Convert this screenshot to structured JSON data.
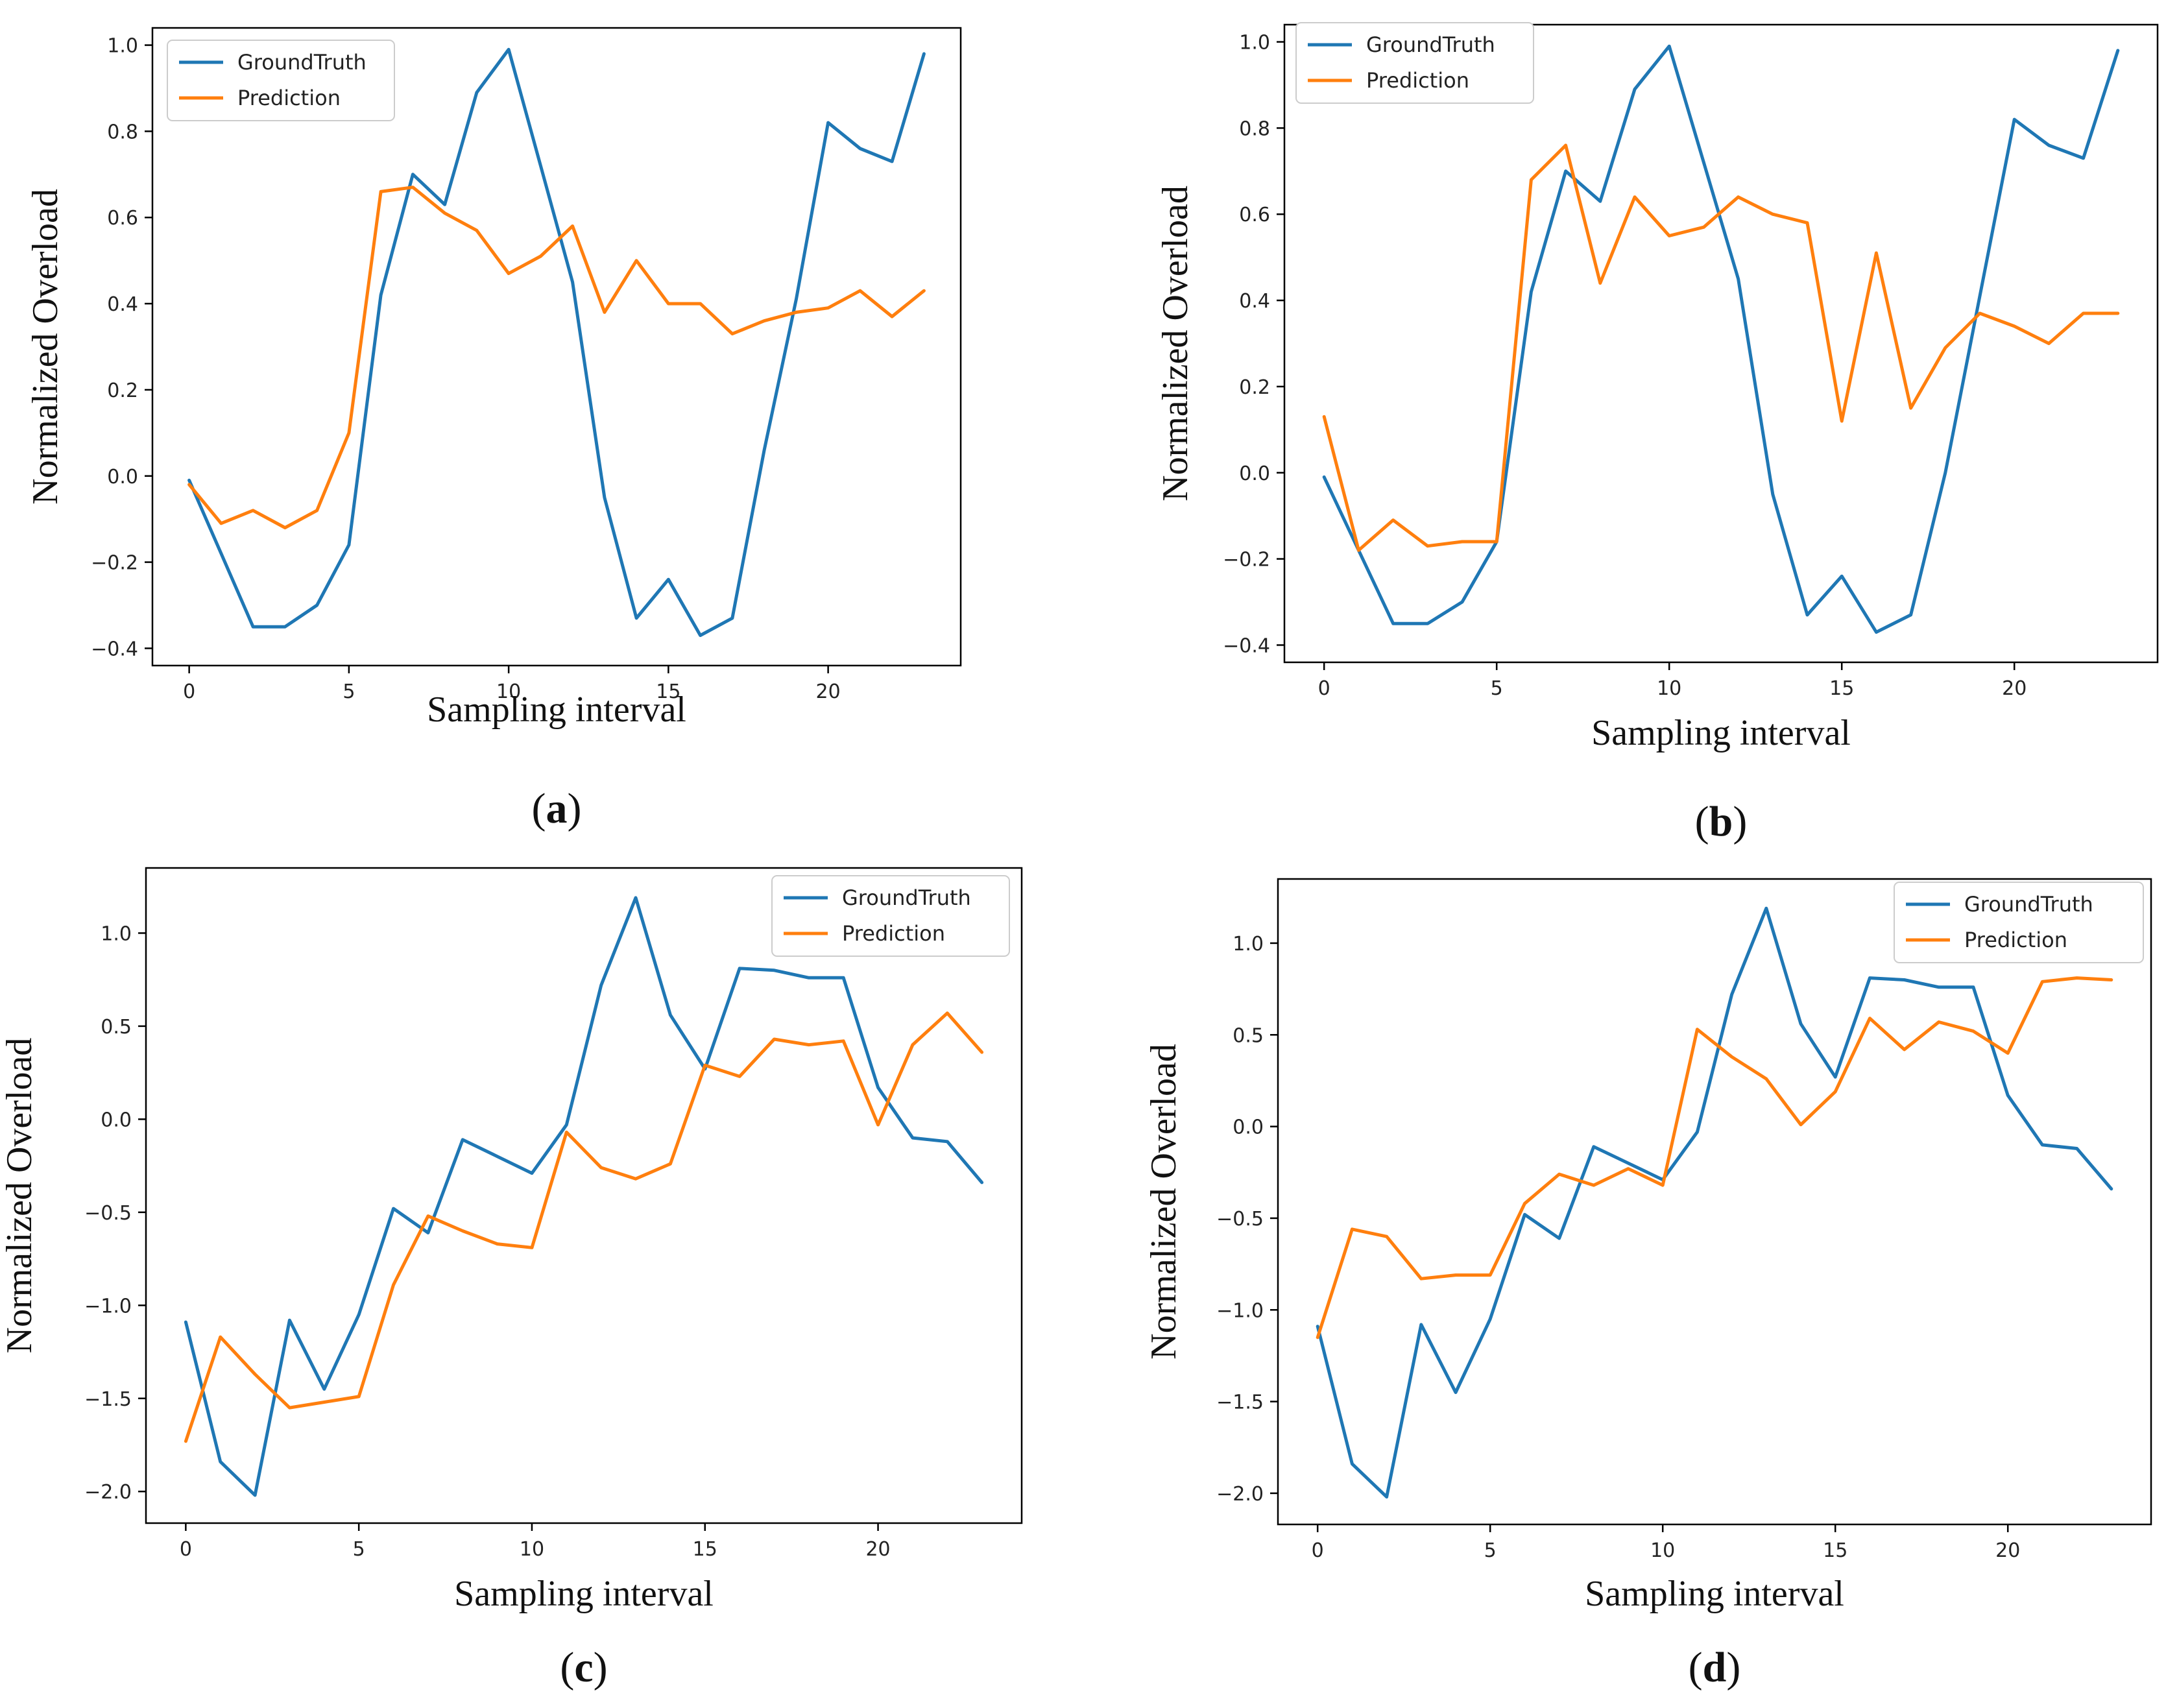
{
  "colors": {
    "groundtruth": "#1f77b4",
    "prediction": "#ff7f0e"
  },
  "chart_data": [
    {
      "type": "line",
      "panel_label": "a",
      "xlabel": "Sampling interval",
      "ylabel": "Normalized Overload",
      "legend_position": "top-left",
      "xlim": [
        -1.15,
        24.15
      ],
      "ylim": [
        -0.44,
        1.04
      ],
      "xticks": [
        0,
        5,
        10,
        15,
        20
      ],
      "xtick_labels": [
        "0",
        "5",
        "10",
        "15",
        "20"
      ],
      "yticks": [
        -0.4,
        -0.2,
        0.0,
        0.2,
        0.4,
        0.6,
        0.8,
        1.0
      ],
      "ytick_labels": [
        "−0.4",
        "−0.2",
        "0.0",
        "0.2",
        "0.4",
        "0.6",
        "0.8",
        "1.0"
      ],
      "x": [
        0,
        1,
        2,
        3,
        4,
        5,
        6,
        7,
        8,
        9,
        10,
        11,
        12,
        13,
        14,
        15,
        16,
        17,
        18,
        19,
        20,
        21,
        22,
        23
      ],
      "series": [
        {
          "name": "GroundTruth",
          "values": [
            -0.01,
            -0.18,
            -0.35,
            -0.35,
            -0.3,
            -0.16,
            0.42,
            0.7,
            0.63,
            0.89,
            0.99,
            0.72,
            0.45,
            -0.05,
            -0.33,
            -0.24,
            -0.37,
            -0.33,
            0.06,
            0.41,
            0.82,
            0.76,
            0.73,
            0.98
          ]
        },
        {
          "name": "Prediction",
          "values": [
            -0.02,
            -0.11,
            -0.08,
            -0.12,
            -0.08,
            0.1,
            0.66,
            0.67,
            0.61,
            0.57,
            0.47,
            0.51,
            0.58,
            0.38,
            0.5,
            0.4,
            0.4,
            0.33,
            0.36,
            0.38,
            0.39,
            0.43,
            0.37,
            0.43
          ]
        }
      ]
    },
    {
      "type": "line",
      "panel_label": "b",
      "xlabel": "Sampling interval",
      "ylabel": "Normalized Overload",
      "legend_position": "top-left",
      "xlim": [
        -1.15,
        24.15
      ],
      "ylim": [
        -0.44,
        1.04
      ],
      "xticks": [
        0,
        5,
        10,
        15,
        20
      ],
      "xtick_labels": [
        "0",
        "5",
        "10",
        "15",
        "20"
      ],
      "yticks": [
        -0.4,
        -0.2,
        0.0,
        0.2,
        0.4,
        0.6,
        0.8,
        1.0
      ],
      "ytick_labels": [
        "−0.4",
        "−0.2",
        "0.0",
        "0.2",
        "0.4",
        "0.6",
        "0.8",
        "1.0"
      ],
      "x": [
        0,
        1,
        2,
        3,
        4,
        5,
        6,
        7,
        8,
        9,
        10,
        11,
        12,
        13,
        14,
        15,
        16,
        17,
        18,
        19,
        20,
        21,
        22,
        23
      ],
      "series": [
        {
          "name": "GroundTruth",
          "values": [
            -0.01,
            -0.18,
            -0.35,
            -0.35,
            -0.3,
            -0.16,
            0.42,
            0.7,
            0.63,
            0.89,
            0.99,
            0.72,
            0.45,
            -0.05,
            -0.33,
            -0.24,
            -0.37,
            -0.33,
            0.0,
            0.41,
            0.82,
            0.76,
            0.73,
            0.98
          ]
        },
        {
          "name": "Prediction",
          "values": [
            0.13,
            -0.18,
            -0.11,
            -0.17,
            -0.16,
            -0.16,
            0.68,
            0.76,
            0.44,
            0.64,
            0.55,
            0.57,
            0.64,
            0.6,
            0.58,
            0.12,
            0.51,
            0.15,
            0.29,
            0.37,
            0.34,
            0.3,
            0.37,
            0.37
          ]
        }
      ]
    },
    {
      "type": "line",
      "panel_label": "c",
      "xlabel": "Sampling interval",
      "ylabel": "Normalized Overload",
      "legend_position": "top-right",
      "xlim": [
        -1.15,
        24.15
      ],
      "ylim": [
        -2.17,
        1.35
      ],
      "xticks": [
        0,
        5,
        10,
        15,
        20
      ],
      "xtick_labels": [
        "0",
        "5",
        "10",
        "15",
        "20"
      ],
      "yticks": [
        -2.0,
        -1.5,
        -1.0,
        -0.5,
        0.0,
        0.5,
        1.0
      ],
      "ytick_labels": [
        "−2.0",
        "−1.5",
        "−1.0",
        "−0.5",
        "0.0",
        "0.5",
        "1.0"
      ],
      "x": [
        0,
        1,
        2,
        3,
        4,
        5,
        6,
        7,
        8,
        9,
        10,
        11,
        12,
        13,
        14,
        15,
        16,
        17,
        18,
        19,
        20,
        21,
        22,
        23
      ],
      "series": [
        {
          "name": "GroundTruth",
          "values": [
            -1.09,
            -1.84,
            -2.02,
            -1.08,
            -1.45,
            -1.05,
            -0.48,
            -0.61,
            -0.11,
            -0.2,
            -0.29,
            -0.03,
            0.72,
            1.19,
            0.56,
            0.27,
            0.81,
            0.8,
            0.76,
            0.76,
            0.17,
            -0.1,
            -0.12,
            -0.34
          ]
        },
        {
          "name": "Prediction",
          "values": [
            -1.73,
            -1.17,
            -1.37,
            -1.55,
            -1.52,
            -1.49,
            -0.89,
            -0.52,
            -0.6,
            -0.67,
            -0.69,
            -0.07,
            -0.26,
            -0.32,
            -0.24,
            0.29,
            0.23,
            0.43,
            0.4,
            0.42,
            -0.03,
            0.4,
            0.57,
            0.36
          ]
        }
      ]
    },
    {
      "type": "line",
      "panel_label": "d",
      "xlabel": "Sampling interval",
      "ylabel": "Normalized Overload",
      "legend_position": "top-right",
      "xlim": [
        -1.15,
        24.15
      ],
      "ylim": [
        -2.17,
        1.35
      ],
      "xticks": [
        0,
        5,
        10,
        15,
        20
      ],
      "xtick_labels": [
        "0",
        "5",
        "10",
        "15",
        "20"
      ],
      "yticks": [
        -2.0,
        -1.5,
        -1.0,
        -0.5,
        0.0,
        0.5,
        1.0
      ],
      "ytick_labels": [
        "−2.0",
        "−1.5",
        "−1.0",
        "−0.5",
        "0.0",
        "0.5",
        "1.0"
      ],
      "x": [
        0,
        1,
        2,
        3,
        4,
        5,
        6,
        7,
        8,
        9,
        10,
        11,
        12,
        13,
        14,
        15,
        16,
        17,
        18,
        19,
        20,
        21,
        22,
        23
      ],
      "series": [
        {
          "name": "GroundTruth",
          "values": [
            -1.09,
            -1.84,
            -2.02,
            -1.08,
            -1.45,
            -1.05,
            -0.48,
            -0.61,
            -0.11,
            -0.2,
            -0.29,
            -0.03,
            0.72,
            1.19,
            0.56,
            0.27,
            0.81,
            0.8,
            0.76,
            0.76,
            0.17,
            -0.1,
            -0.12,
            -0.34
          ]
        },
        {
          "name": "Prediction",
          "values": [
            -1.15,
            -0.56,
            -0.6,
            -0.83,
            -0.81,
            -0.81,
            -0.42,
            -0.26,
            -0.32,
            -0.23,
            -0.32,
            0.53,
            0.38,
            0.26,
            0.01,
            0.19,
            0.59,
            0.42,
            0.57,
            0.52,
            0.4,
            0.79,
            0.81,
            0.8
          ]
        }
      ]
    }
  ]
}
